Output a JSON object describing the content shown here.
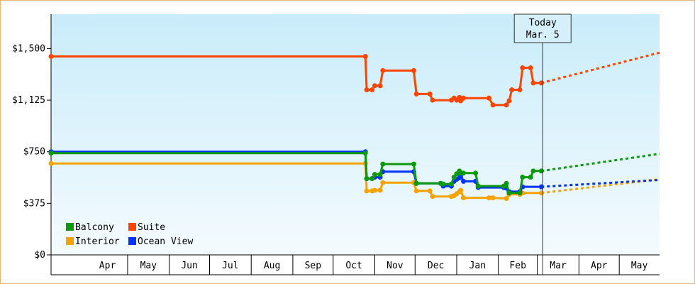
{
  "chart_data": {
    "type": "line",
    "title": "",
    "xlabel": "",
    "ylabel": "",
    "ylim": [
      0,
      1750
    ],
    "y_ticks": [
      {
        "value": 0,
        "label": "$0"
      },
      {
        "value": 375,
        "label": "$375"
      },
      {
        "value": 750,
        "label": "$750"
      },
      {
        "value": 1125,
        "label": "$1,125"
      },
      {
        "value": 1500,
        "label": "$1,500"
      }
    ],
    "x_range": [
      "2023-03-05",
      "2024-05-31"
    ],
    "month_ticks": [
      {
        "label": "Apr",
        "start": "2023-04-01"
      },
      {
        "label": "May",
        "start": "2023-05-01"
      },
      {
        "label": "Jun",
        "start": "2023-06-01"
      },
      {
        "label": "Jul",
        "start": "2023-07-01"
      },
      {
        "label": "Aug",
        "start": "2023-08-01"
      },
      {
        "label": "Sep",
        "start": "2023-09-01"
      },
      {
        "label": "Oct",
        "start": "2023-10-01"
      },
      {
        "label": "Nov",
        "start": "2023-11-01"
      },
      {
        "label": "Dec",
        "start": "2023-12-01"
      },
      {
        "label": "Jan",
        "start": "2024-01-01"
      },
      {
        "label": "Feb",
        "start": "2024-02-01"
      },
      {
        "label": "Mar",
        "start": "2024-03-01"
      },
      {
        "label": "Apr",
        "start": "2024-04-01"
      },
      {
        "label": "May",
        "start": "2024-05-01"
      }
    ],
    "today": {
      "date": "2024-03-05",
      "label_line1": "Today",
      "label_line2": "Mar. 5"
    },
    "legend_placement": "bottom-left",
    "grid": false,
    "series": [
      {
        "name": "Suite",
        "color": "#ff4400",
        "points": [
          [
            "2023-03-05",
            1443
          ],
          [
            "2023-10-25",
            1443
          ],
          [
            "2023-10-26",
            1200
          ],
          [
            "2023-10-30",
            1200
          ],
          [
            "2023-11-01",
            1230
          ],
          [
            "2023-11-05",
            1230
          ],
          [
            "2023-11-07",
            1340
          ],
          [
            "2023-11-30",
            1340
          ],
          [
            "2023-12-02",
            1170
          ],
          [
            "2023-12-12",
            1170
          ],
          [
            "2023-12-14",
            1125
          ],
          [
            "2023-12-28",
            1125
          ],
          [
            "2023-12-30",
            1140
          ],
          [
            "2024-01-01",
            1125
          ],
          [
            "2024-01-03",
            1145
          ],
          [
            "2024-01-04",
            1120
          ],
          [
            "2024-01-06",
            1140
          ],
          [
            "2024-01-25",
            1140
          ],
          [
            "2024-01-28",
            1090
          ],
          [
            "2024-02-07",
            1090
          ],
          [
            "2024-02-09",
            1120
          ],
          [
            "2024-02-11",
            1200
          ],
          [
            "2024-02-17",
            1200
          ],
          [
            "2024-02-19",
            1360
          ],
          [
            "2024-02-25",
            1360
          ],
          [
            "2024-02-27",
            1250
          ],
          [
            "2024-03-04",
            1250
          ]
        ],
        "forecast": [
          [
            "2024-03-04",
            1250
          ],
          [
            "2024-05-31",
            1470
          ]
        ]
      },
      {
        "name": "Balcony",
        "color": "#0c9a0c",
        "points": [
          [
            "2023-03-05",
            740
          ],
          [
            "2023-10-25",
            740
          ],
          [
            "2023-10-26",
            555
          ],
          [
            "2023-10-30",
            555
          ],
          [
            "2023-11-01",
            585
          ],
          [
            "2023-11-05",
            585
          ],
          [
            "2023-11-07",
            660
          ],
          [
            "2023-11-30",
            660
          ],
          [
            "2023-12-02",
            520
          ],
          [
            "2023-12-20",
            520
          ],
          [
            "2023-12-22",
            515
          ],
          [
            "2023-12-28",
            515
          ],
          [
            "2023-12-30",
            565
          ],
          [
            "2024-01-01",
            590
          ],
          [
            "2024-01-03",
            610
          ],
          [
            "2024-01-04",
            595
          ],
          [
            "2024-01-06",
            595
          ],
          [
            "2024-01-15",
            595
          ],
          [
            "2024-01-17",
            500
          ],
          [
            "2024-02-05",
            500
          ],
          [
            "2024-02-07",
            520
          ],
          [
            "2024-02-09",
            450
          ],
          [
            "2024-02-17",
            450
          ],
          [
            "2024-02-19",
            565
          ],
          [
            "2024-02-25",
            565
          ],
          [
            "2024-02-27",
            610
          ],
          [
            "2024-03-04",
            610
          ]
        ],
        "forecast": [
          [
            "2024-03-04",
            610
          ],
          [
            "2024-05-31",
            735
          ]
        ]
      },
      {
        "name": "Interior",
        "color": "#f5a300",
        "points": [
          [
            "2023-03-05",
            665
          ],
          [
            "2023-10-25",
            665
          ],
          [
            "2023-10-26",
            465
          ],
          [
            "2023-10-30",
            465
          ],
          [
            "2023-11-01",
            470
          ],
          [
            "2023-11-05",
            470
          ],
          [
            "2023-11-07",
            525
          ],
          [
            "2023-11-30",
            525
          ],
          [
            "2023-12-02",
            465
          ],
          [
            "2023-12-12",
            465
          ],
          [
            "2023-12-14",
            425
          ],
          [
            "2023-12-28",
            425
          ],
          [
            "2023-12-30",
            430
          ],
          [
            "2024-01-01",
            445
          ],
          [
            "2024-01-03",
            460
          ],
          [
            "2024-01-04",
            470
          ],
          [
            "2024-01-06",
            415
          ],
          [
            "2024-01-25",
            415
          ],
          [
            "2024-01-28",
            415
          ],
          [
            "2024-02-07",
            410
          ],
          [
            "2024-02-09",
            440
          ],
          [
            "2024-02-17",
            440
          ],
          [
            "2024-02-19",
            450
          ],
          [
            "2024-03-04",
            450
          ]
        ],
        "forecast": [
          [
            "2024-03-04",
            450
          ],
          [
            "2024-05-31",
            550
          ]
        ]
      },
      {
        "name": "Ocean View",
        "color": "#0033ff",
        "points": [
          [
            "2023-03-05",
            750
          ],
          [
            "2023-10-25",
            750
          ],
          [
            "2023-10-26",
            555
          ],
          [
            "2023-10-30",
            555
          ],
          [
            "2023-11-01",
            565
          ],
          [
            "2023-11-05",
            565
          ],
          [
            "2023-11-07",
            605
          ],
          [
            "2023-11-30",
            605
          ],
          [
            "2023-12-02",
            520
          ],
          [
            "2023-12-20",
            520
          ],
          [
            "2023-12-22",
            500
          ],
          [
            "2023-12-28",
            500
          ],
          [
            "2023-12-30",
            535
          ],
          [
            "2024-01-01",
            550
          ],
          [
            "2024-01-03",
            560
          ],
          [
            "2024-01-04",
            580
          ],
          [
            "2024-01-06",
            535
          ],
          [
            "2024-01-15",
            535
          ],
          [
            "2024-01-17",
            490
          ],
          [
            "2024-02-05",
            490
          ],
          [
            "2024-02-07",
            485
          ],
          [
            "2024-02-09",
            460
          ],
          [
            "2024-02-17",
            460
          ],
          [
            "2024-02-19",
            495
          ],
          [
            "2024-03-04",
            495
          ]
        ],
        "forecast": [
          [
            "2024-03-04",
            495
          ],
          [
            "2024-05-31",
            545
          ]
        ]
      }
    ],
    "legend": [
      {
        "name": "Balcony",
        "color": "#0c9a0c"
      },
      {
        "name": "Suite",
        "color": "#ff4400"
      },
      {
        "name": "Interior",
        "color": "#f5a300"
      },
      {
        "name": "Ocean View",
        "color": "#0033ff"
      }
    ]
  }
}
